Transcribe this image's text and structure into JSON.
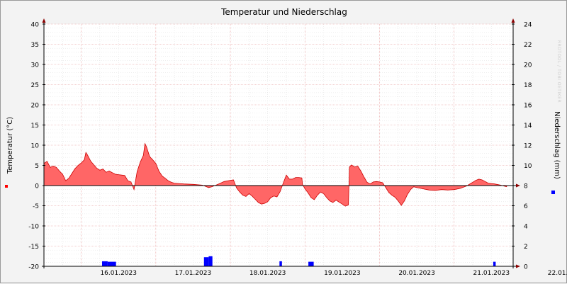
{
  "chart_data": {
    "type": "area",
    "title": "Temperatur und Niederschlag",
    "watermark": "RRDTOOL / TOBI OETIKER",
    "ylabel": "Temperatur (°C)",
    "y2label": "Niederschlag (mm)",
    "ylim": [
      -20,
      40
    ],
    "y2lim": [
      0,
      24
    ],
    "yticks": [
      "40",
      "35",
      "30",
      "25",
      "20",
      "15",
      "10",
      "5",
      "0",
      "-5",
      "-10",
      "-15",
      "-20"
    ],
    "y2ticks": [
      "24",
      "22",
      "20",
      "18",
      "16",
      "14",
      "12",
      "10",
      "8",
      "6",
      "4",
      "2",
      "0"
    ],
    "xlim": [
      "15.01.2023 12:00",
      "22.01.2023 19:00"
    ],
    "xticks": [
      "16.01.2023",
      "17.01.2023",
      "18.01.2023",
      "19.01.2023",
      "20.01.2023",
      "21.01.2023",
      "22.01.2023"
    ],
    "temperature_color": "#ff6666",
    "temperature_line_color": "#cc0000",
    "precip_color": "#0000ff",
    "grid": true,
    "series": [
      {
        "key": "temperature",
        "points": [
          [
            -12,
            5.5
          ],
          [
            -11,
            6.0
          ],
          [
            -10,
            4.5
          ],
          [
            -9,
            4.8
          ],
          [
            -8,
            4.5
          ],
          [
            -7,
            3.6
          ],
          [
            -6,
            2.8
          ],
          [
            -5,
            1.2
          ],
          [
            -4,
            1.8
          ],
          [
            -3,
            3.0
          ],
          [
            -2,
            4.2
          ],
          [
            -1,
            5.0
          ],
          [
            0,
            5.6
          ],
          [
            1,
            6.4
          ],
          [
            1.5,
            8.2
          ],
          [
            2,
            7.6
          ],
          [
            3,
            6.1
          ],
          [
            4,
            5.2
          ],
          [
            5,
            4.3
          ],
          [
            6,
            3.8
          ],
          [
            7,
            4.1
          ],
          [
            8,
            3.3
          ],
          [
            9,
            3.6
          ],
          [
            10,
            3.2
          ],
          [
            11,
            2.8
          ],
          [
            12,
            2.7
          ],
          [
            13,
            2.6
          ],
          [
            14,
            2.5
          ],
          [
            15,
            1.2
          ],
          [
            16,
            0.9
          ],
          [
            17,
            -1.0
          ],
          [
            18,
            3.5
          ],
          [
            19,
            5.8
          ],
          [
            20,
            7.5
          ],
          [
            20.5,
            10.4
          ],
          [
            21,
            9.6
          ],
          [
            22,
            7.2
          ],
          [
            23,
            6.4
          ],
          [
            24,
            5.5
          ],
          [
            25,
            3.6
          ],
          [
            26,
            2.4
          ],
          [
            27,
            1.8
          ],
          [
            28,
            1.2
          ],
          [
            29,
            0.8
          ],
          [
            30,
            0.6
          ],
          [
            33,
            0.4
          ],
          [
            36,
            0.3
          ],
          [
            39,
            0.1
          ],
          [
            40,
            -0.2
          ],
          [
            41,
            -0.5
          ],
          [
            42,
            -0.3
          ],
          [
            44,
            0.3
          ],
          [
            46,
            1.0
          ],
          [
            48,
            1.3
          ],
          [
            49,
            1.4
          ],
          [
            50,
            -0.6
          ],
          [
            51,
            -1.6
          ],
          [
            52,
            -2.4
          ],
          [
            53,
            -2.7
          ],
          [
            54,
            -2.0
          ],
          [
            55,
            -2.6
          ],
          [
            56,
            -3.4
          ],
          [
            57,
            -4.2
          ],
          [
            58,
            -4.6
          ],
          [
            59,
            -4.4
          ],
          [
            60,
            -4.0
          ],
          [
            61,
            -3.0
          ],
          [
            62,
            -2.6
          ],
          [
            63,
            -2.8
          ],
          [
            64,
            -1.5
          ],
          [
            65,
            0.6
          ],
          [
            66,
            2.6
          ],
          [
            67,
            1.6
          ],
          [
            68,
            1.6
          ],
          [
            69,
            2.0
          ],
          [
            70,
            2.0
          ],
          [
            71,
            1.9
          ],
          [
            71.2,
            0.3
          ],
          [
            72,
            -0.8
          ],
          [
            73,
            -1.8
          ],
          [
            74,
            -3.0
          ],
          [
            75,
            -3.5
          ],
          [
            76,
            -2.4
          ],
          [
            77,
            -1.6
          ],
          [
            78,
            -2.0
          ],
          [
            79,
            -3.0
          ],
          [
            80,
            -3.8
          ],
          [
            81,
            -4.2
          ],
          [
            82,
            -3.6
          ],
          [
            83,
            -4.1
          ],
          [
            84,
            -4.6
          ],
          [
            85,
            -5.1
          ],
          [
            86,
            -4.8
          ],
          [
            86.3,
            4.6
          ],
          [
            87,
            5.1
          ],
          [
            88,
            4.6
          ],
          [
            89,
            4.8
          ],
          [
            90,
            3.6
          ],
          [
            91,
            2.1
          ],
          [
            92,
            0.8
          ],
          [
            93,
            0.4
          ],
          [
            94,
            0.9
          ],
          [
            95,
            1.0
          ],
          [
            96,
            0.9
          ],
          [
            97,
            0.7
          ],
          [
            98,
            -0.5
          ],
          [
            99,
            -1.7
          ],
          [
            100,
            -2.4
          ],
          [
            101,
            -2.9
          ],
          [
            102,
            -3.8
          ],
          [
            103,
            -4.9
          ],
          [
            104,
            -3.8
          ],
          [
            105,
            -2.2
          ],
          [
            106,
            -1.0
          ],
          [
            107,
            -0.3
          ],
          [
            108,
            -0.5
          ],
          [
            110,
            -0.8
          ],
          [
            112,
            -1.1
          ],
          [
            114,
            -1.2
          ],
          [
            116,
            -1.0
          ],
          [
            118,
            -1.1
          ],
          [
            120,
            -1.0
          ],
          [
            122,
            -0.7
          ],
          [
            124,
            -0.1
          ],
          [
            126,
            0.8
          ],
          [
            127,
            1.3
          ],
          [
            128,
            1.6
          ],
          [
            129,
            1.4
          ],
          [
            130,
            1.0
          ],
          [
            131,
            0.6
          ],
          [
            133,
            0.4
          ],
          [
            135,
            0.1
          ],
          [
            136,
            -0.1
          ],
          [
            137,
            -0.3
          ]
        ]
      },
      {
        "key": "precipitation",
        "bars": [
          [
            6.7,
            8.5,
            0.5
          ],
          [
            8.5,
            9.9,
            0.45
          ],
          [
            9.9,
            11.2,
            0.45
          ],
          [
            39.5,
            41.0,
            0.9
          ],
          [
            41.0,
            42.2,
            1.0
          ],
          [
            63.8,
            64.6,
            0.5
          ],
          [
            73.1,
            74.8,
            0.45
          ],
          [
            132.6,
            133.4,
            0.45
          ]
        ]
      }
    ]
  }
}
